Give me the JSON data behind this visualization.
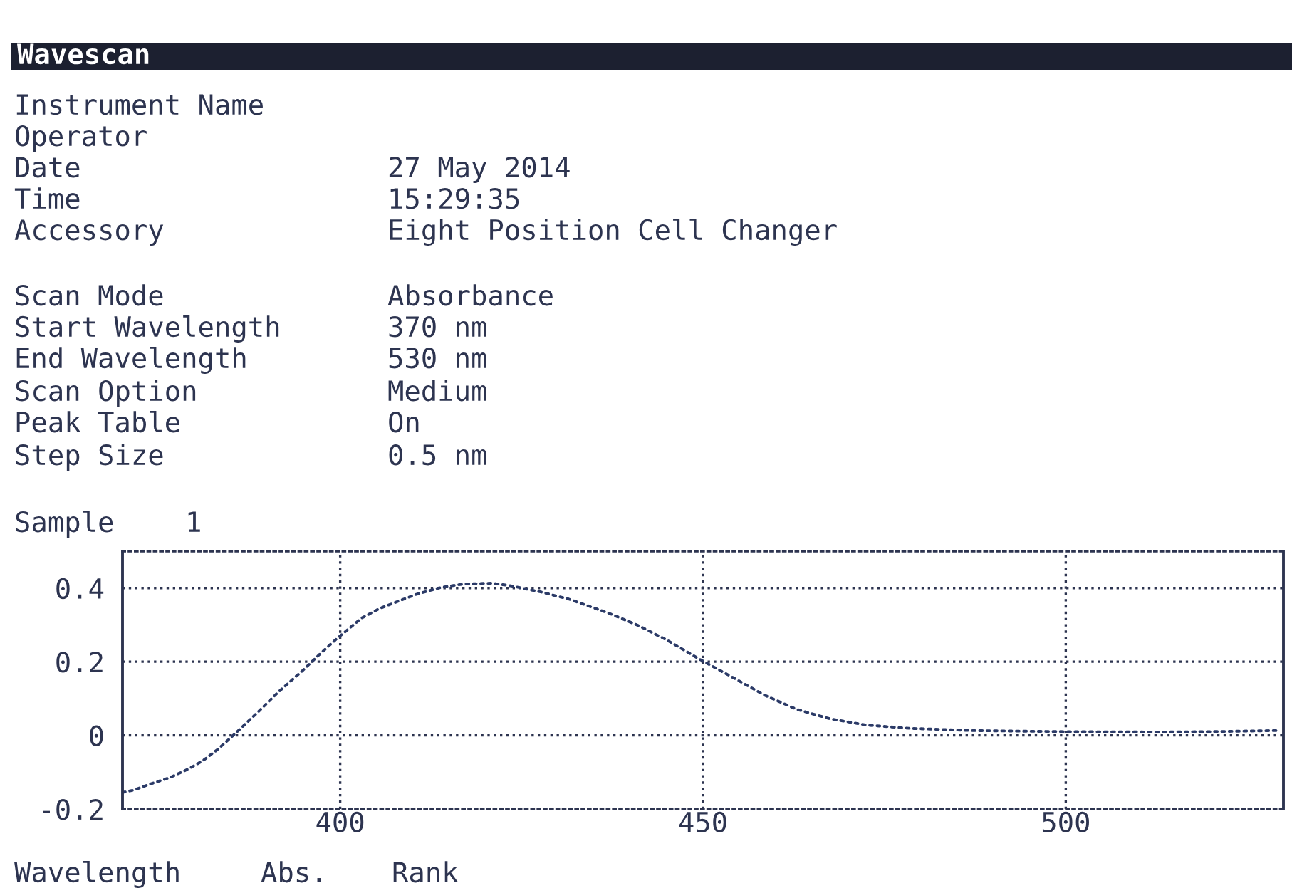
{
  "chart_data": {
    "type": "line",
    "title": "Wavescan",
    "annotations": [
      "Instrument Name",
      "Operator",
      "Date",
      "27 May 2014",
      "Time",
      "15:29:35",
      "Accessory",
      "Eight Position Cell Changer",
      "Scan Mode",
      "Absorbance",
      "Start Wavelength",
      "370 nm",
      "End Wavelength",
      "530 nm",
      "Scan Option",
      "Medium",
      "Peak Table",
      "On",
      "Step Size",
      "0.5 nm",
      "Sample",
      "1",
      "Wavelength",
      "Abs.",
      "Rank"
    ],
    "x": [
      370,
      371.5,
      374,
      376.5,
      379,
      381,
      383,
      385,
      388.5,
      391.5,
      395,
      397,
      399.5,
      403,
      405.5,
      408,
      410.5,
      414,
      417,
      421,
      423.5,
      427.5,
      431.5,
      437,
      441,
      445,
      449.5,
      454.5,
      458.5,
      463,
      467.5,
      472.5,
      478.5,
      487,
      500,
      513,
      520,
      529
    ],
    "series": [
      {
        "color": "#2b3a67",
        "values": [
          -0.155,
          -0.149,
          -0.131,
          -0.115,
          -0.092,
          -0.07,
          -0.04,
          -0.005,
          0.06,
          0.118,
          0.179,
          0.217,
          0.262,
          0.319,
          0.345,
          0.364,
          0.383,
          0.402,
          0.411,
          0.413,
          0.406,
          0.39,
          0.37,
          0.332,
          0.299,
          0.259,
          0.207,
          0.153,
          0.109,
          0.07,
          0.045,
          0.028,
          0.019,
          0.013,
          0.01,
          0.009,
          0.01,
          0.013
        ]
      }
    ],
    "xlim": [
      370,
      530
    ],
    "ylim": [
      -0.2,
      0.5
    ],
    "xticks": [
      400,
      450,
      500
    ],
    "yticks": [
      -0.2,
      0,
      0.2,
      0.4
    ],
    "grid": true,
    "line_style": "dotted"
  }
}
